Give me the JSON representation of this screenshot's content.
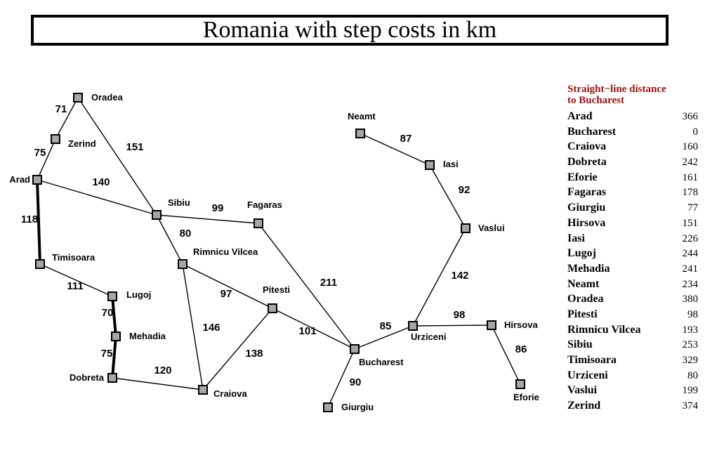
{
  "title": "Romania with step costs in km",
  "cities": [
    {
      "id": "oradea",
      "name": "Oradea"
    },
    {
      "id": "zerind",
      "name": "Zerind"
    },
    {
      "id": "arad",
      "name": "Arad"
    },
    {
      "id": "timisoara",
      "name": "Timisoara"
    },
    {
      "id": "lugoj",
      "name": "Lugoj"
    },
    {
      "id": "mehadia",
      "name": "Mehadia"
    },
    {
      "id": "dobreta",
      "name": "Dobreta"
    },
    {
      "id": "sibiu",
      "name": "Sibiu"
    },
    {
      "id": "rimnicu",
      "name": "Rimnicu Vilcea"
    },
    {
      "id": "fagaras",
      "name": "Fagaras"
    },
    {
      "id": "pitesti",
      "name": "Pitesti"
    },
    {
      "id": "craiova",
      "name": "Craiova"
    },
    {
      "id": "bucharest",
      "name": "Bucharest"
    },
    {
      "id": "giurgiu",
      "name": "Giurgiu"
    },
    {
      "id": "urziceni",
      "name": "Urziceni"
    },
    {
      "id": "neamt",
      "name": "Neamt"
    },
    {
      "id": "iasi",
      "name": "Iasi"
    },
    {
      "id": "vaslui",
      "name": "Vaslui"
    },
    {
      "id": "hirsova",
      "name": "Hirsova"
    },
    {
      "id": "eforie",
      "name": "Eforie"
    }
  ],
  "roads": [
    {
      "from": "oradea",
      "to": "zerind",
      "cost": "71"
    },
    {
      "from": "zerind",
      "to": "arad",
      "cost": "75"
    },
    {
      "from": "arad",
      "to": "timisoara",
      "cost": "118",
      "bold": true
    },
    {
      "from": "timisoara",
      "to": "lugoj",
      "cost": "111"
    },
    {
      "from": "lugoj",
      "to": "mehadia",
      "cost": "70",
      "bold": true
    },
    {
      "from": "mehadia",
      "to": "dobreta",
      "cost": "75",
      "bold": true
    },
    {
      "from": "oradea",
      "to": "sibiu",
      "cost": "151"
    },
    {
      "from": "arad",
      "to": "sibiu",
      "cost": "140"
    },
    {
      "from": "sibiu",
      "to": "fagaras",
      "cost": "99"
    },
    {
      "from": "sibiu",
      "to": "rimnicu",
      "cost": "80"
    },
    {
      "from": "rimnicu",
      "to": "pitesti",
      "cost": "97"
    },
    {
      "from": "rimnicu",
      "to": "craiova",
      "cost": "146"
    },
    {
      "from": "dobreta",
      "to": "craiova",
      "cost": "120"
    },
    {
      "from": "pitesti",
      "to": "craiova",
      "cost": "138"
    },
    {
      "from": "fagaras",
      "to": "bucharest",
      "cost": "211"
    },
    {
      "from": "pitesti",
      "to": "bucharest",
      "cost": "101"
    },
    {
      "from": "bucharest",
      "to": "giurgiu",
      "cost": "90"
    },
    {
      "from": "bucharest",
      "to": "urziceni",
      "cost": "85"
    },
    {
      "from": "urziceni",
      "to": "hirsova",
      "cost": "98"
    },
    {
      "from": "hirsova",
      "to": "eforie",
      "cost": "86"
    },
    {
      "from": "urziceni",
      "to": "vaslui",
      "cost": "142"
    },
    {
      "from": "vaslui",
      "to": "iasi",
      "cost": "92"
    },
    {
      "from": "iasi",
      "to": "neamt",
      "cost": "87"
    }
  ],
  "sld": {
    "heading_line1": "Straight−line distance",
    "heading_line2": "to Bucharest",
    "rows": [
      {
        "name": "Arad",
        "value": "366"
      },
      {
        "name": "Bucharest",
        "value": "0"
      },
      {
        "name": "Craiova",
        "value": "160"
      },
      {
        "name": "Dobreta",
        "value": "242"
      },
      {
        "name": "Eforie",
        "value": "161"
      },
      {
        "name": "Fagaras",
        "value": "178"
      },
      {
        "name": "Giurgiu",
        "value": "77"
      },
      {
        "name": "Hirsova",
        "value": "151"
      },
      {
        "name": "Iasi",
        "value": "226"
      },
      {
        "name": "Lugoj",
        "value": "244"
      },
      {
        "name": "Mehadia",
        "value": "241"
      },
      {
        "name": "Neamt",
        "value": "234"
      },
      {
        "name": "Oradea",
        "value": "380"
      },
      {
        "name": "Pitesti",
        "value": "98"
      },
      {
        "name": "Rimnicu Vilcea",
        "value": "193"
      },
      {
        "name": "Sibiu",
        "value": "253"
      },
      {
        "name": "Timisoara",
        "value": "329"
      },
      {
        "name": "Urziceni",
        "value": "80"
      },
      {
        "name": "Vaslui",
        "value": "199"
      },
      {
        "name": "Zerind",
        "value": "374"
      }
    ]
  }
}
